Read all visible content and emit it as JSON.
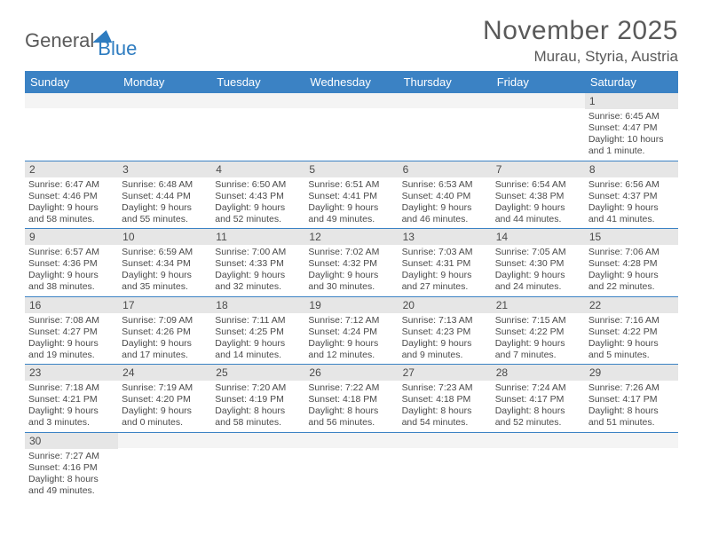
{
  "logo": {
    "part1": "General",
    "part2": "Blue"
  },
  "title": "November 2025",
  "location": "Murau, Styria, Austria",
  "colors": {
    "header_bg": "#3b82c4",
    "header_text": "#ffffff",
    "daynum_bg": "#e6e6e6",
    "text": "#4a4a4a",
    "border": "#3b82c4",
    "logo_gray": "#5a5a5a",
    "logo_blue": "#2e7cc0"
  },
  "weekdays": [
    "Sunday",
    "Monday",
    "Tuesday",
    "Wednesday",
    "Thursday",
    "Friday",
    "Saturday"
  ],
  "weeks": [
    [
      {
        "empty": true
      },
      {
        "empty": true
      },
      {
        "empty": true
      },
      {
        "empty": true
      },
      {
        "empty": true
      },
      {
        "empty": true
      },
      {
        "n": "1",
        "sunrise": "Sunrise: 6:45 AM",
        "sunset": "Sunset: 4:47 PM",
        "daylight": "Daylight: 10 hours and 1 minute."
      }
    ],
    [
      {
        "n": "2",
        "sunrise": "Sunrise: 6:47 AM",
        "sunset": "Sunset: 4:46 PM",
        "daylight": "Daylight: 9 hours and 58 minutes."
      },
      {
        "n": "3",
        "sunrise": "Sunrise: 6:48 AM",
        "sunset": "Sunset: 4:44 PM",
        "daylight": "Daylight: 9 hours and 55 minutes."
      },
      {
        "n": "4",
        "sunrise": "Sunrise: 6:50 AM",
        "sunset": "Sunset: 4:43 PM",
        "daylight": "Daylight: 9 hours and 52 minutes."
      },
      {
        "n": "5",
        "sunrise": "Sunrise: 6:51 AM",
        "sunset": "Sunset: 4:41 PM",
        "daylight": "Daylight: 9 hours and 49 minutes."
      },
      {
        "n": "6",
        "sunrise": "Sunrise: 6:53 AM",
        "sunset": "Sunset: 4:40 PM",
        "daylight": "Daylight: 9 hours and 46 minutes."
      },
      {
        "n": "7",
        "sunrise": "Sunrise: 6:54 AM",
        "sunset": "Sunset: 4:38 PM",
        "daylight": "Daylight: 9 hours and 44 minutes."
      },
      {
        "n": "8",
        "sunrise": "Sunrise: 6:56 AM",
        "sunset": "Sunset: 4:37 PM",
        "daylight": "Daylight: 9 hours and 41 minutes."
      }
    ],
    [
      {
        "n": "9",
        "sunrise": "Sunrise: 6:57 AM",
        "sunset": "Sunset: 4:36 PM",
        "daylight": "Daylight: 9 hours and 38 minutes."
      },
      {
        "n": "10",
        "sunrise": "Sunrise: 6:59 AM",
        "sunset": "Sunset: 4:34 PM",
        "daylight": "Daylight: 9 hours and 35 minutes."
      },
      {
        "n": "11",
        "sunrise": "Sunrise: 7:00 AM",
        "sunset": "Sunset: 4:33 PM",
        "daylight": "Daylight: 9 hours and 32 minutes."
      },
      {
        "n": "12",
        "sunrise": "Sunrise: 7:02 AM",
        "sunset": "Sunset: 4:32 PM",
        "daylight": "Daylight: 9 hours and 30 minutes."
      },
      {
        "n": "13",
        "sunrise": "Sunrise: 7:03 AM",
        "sunset": "Sunset: 4:31 PM",
        "daylight": "Daylight: 9 hours and 27 minutes."
      },
      {
        "n": "14",
        "sunrise": "Sunrise: 7:05 AM",
        "sunset": "Sunset: 4:30 PM",
        "daylight": "Daylight: 9 hours and 24 minutes."
      },
      {
        "n": "15",
        "sunrise": "Sunrise: 7:06 AM",
        "sunset": "Sunset: 4:28 PM",
        "daylight": "Daylight: 9 hours and 22 minutes."
      }
    ],
    [
      {
        "n": "16",
        "sunrise": "Sunrise: 7:08 AM",
        "sunset": "Sunset: 4:27 PM",
        "daylight": "Daylight: 9 hours and 19 minutes."
      },
      {
        "n": "17",
        "sunrise": "Sunrise: 7:09 AM",
        "sunset": "Sunset: 4:26 PM",
        "daylight": "Daylight: 9 hours and 17 minutes."
      },
      {
        "n": "18",
        "sunrise": "Sunrise: 7:11 AM",
        "sunset": "Sunset: 4:25 PM",
        "daylight": "Daylight: 9 hours and 14 minutes."
      },
      {
        "n": "19",
        "sunrise": "Sunrise: 7:12 AM",
        "sunset": "Sunset: 4:24 PM",
        "daylight": "Daylight: 9 hours and 12 minutes."
      },
      {
        "n": "20",
        "sunrise": "Sunrise: 7:13 AM",
        "sunset": "Sunset: 4:23 PM",
        "daylight": "Daylight: 9 hours and 9 minutes."
      },
      {
        "n": "21",
        "sunrise": "Sunrise: 7:15 AM",
        "sunset": "Sunset: 4:22 PM",
        "daylight": "Daylight: 9 hours and 7 minutes."
      },
      {
        "n": "22",
        "sunrise": "Sunrise: 7:16 AM",
        "sunset": "Sunset: 4:22 PM",
        "daylight": "Daylight: 9 hours and 5 minutes."
      }
    ],
    [
      {
        "n": "23",
        "sunrise": "Sunrise: 7:18 AM",
        "sunset": "Sunset: 4:21 PM",
        "daylight": "Daylight: 9 hours and 3 minutes."
      },
      {
        "n": "24",
        "sunrise": "Sunrise: 7:19 AM",
        "sunset": "Sunset: 4:20 PM",
        "daylight": "Daylight: 9 hours and 0 minutes."
      },
      {
        "n": "25",
        "sunrise": "Sunrise: 7:20 AM",
        "sunset": "Sunset: 4:19 PM",
        "daylight": "Daylight: 8 hours and 58 minutes."
      },
      {
        "n": "26",
        "sunrise": "Sunrise: 7:22 AM",
        "sunset": "Sunset: 4:18 PM",
        "daylight": "Daylight: 8 hours and 56 minutes."
      },
      {
        "n": "27",
        "sunrise": "Sunrise: 7:23 AM",
        "sunset": "Sunset: 4:18 PM",
        "daylight": "Daylight: 8 hours and 54 minutes."
      },
      {
        "n": "28",
        "sunrise": "Sunrise: 7:24 AM",
        "sunset": "Sunset: 4:17 PM",
        "daylight": "Daylight: 8 hours and 52 minutes."
      },
      {
        "n": "29",
        "sunrise": "Sunrise: 7:26 AM",
        "sunset": "Sunset: 4:17 PM",
        "daylight": "Daylight: 8 hours and 51 minutes."
      }
    ],
    [
      {
        "n": "30",
        "sunrise": "Sunrise: 7:27 AM",
        "sunset": "Sunset: 4:16 PM",
        "daylight": "Daylight: 8 hours and 49 minutes."
      },
      {
        "empty": true
      },
      {
        "empty": true
      },
      {
        "empty": true
      },
      {
        "empty": true
      },
      {
        "empty": true
      },
      {
        "empty": true
      }
    ]
  ]
}
